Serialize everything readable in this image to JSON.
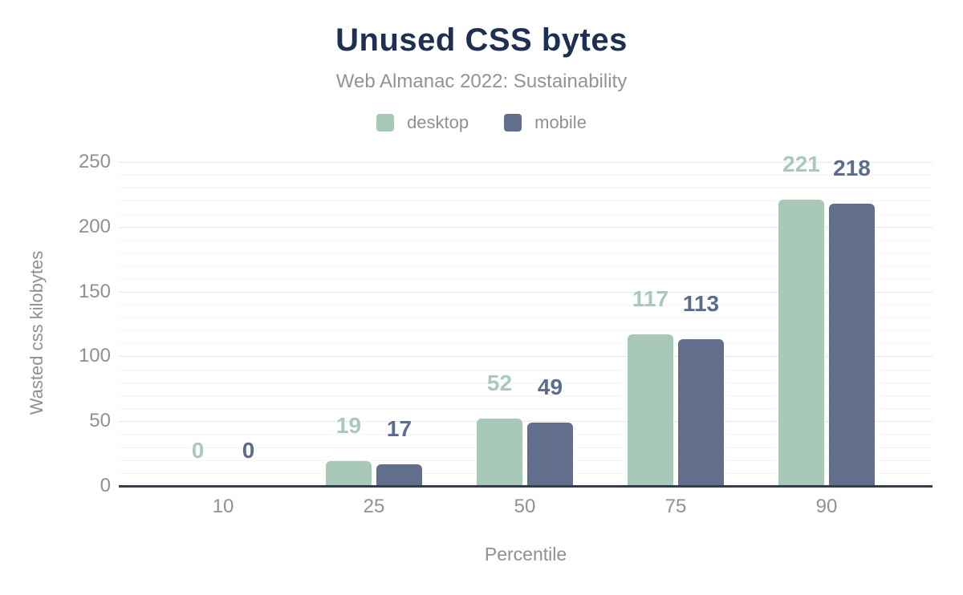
{
  "header": {
    "title": "Unused CSS bytes",
    "subtitle": "Web Almanac 2022: Sustainability"
  },
  "chart_data": {
    "type": "bar",
    "title": "Unused CSS bytes",
    "subtitle": "Web Almanac 2022: Sustainability",
    "categories": [
      "10",
      "25",
      "50",
      "75",
      "90"
    ],
    "series": [
      {
        "name": "desktop",
        "color": "#a8c8b8",
        "label_color": "#a9cab8",
        "values": [
          0,
          19,
          52,
          117,
          221
        ]
      },
      {
        "name": "mobile",
        "color": "#616f8c",
        "label_color": "#5c6c8f",
        "values": [
          0,
          17,
          49,
          113,
          218
        ]
      }
    ],
    "xlabel": "Percentile",
    "ylabel": "Wasted css kilobytes",
    "ylim": [
      0,
      250
    ],
    "y_ticks": [
      0,
      50,
      100,
      150,
      200,
      250
    ],
    "grid": {
      "major_step": 50,
      "minor_step": 10,
      "minor_color": "#f5f5f5",
      "major_color": "#e9e9e9"
    },
    "legend_position": "top",
    "data_labels": true
  },
  "colors": {
    "title": "#1e2f51",
    "subtitle": "#8f9499",
    "axis_text": "#8c9196",
    "baseline": "#363d49",
    "background": "#ffffff"
  }
}
